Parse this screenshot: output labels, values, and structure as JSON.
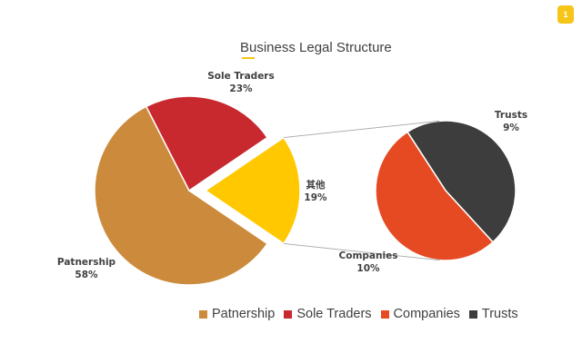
{
  "badge": "1",
  "chart_data": {
    "type": "pie",
    "subtype": "bar-of-pie",
    "title": "Business Legal Structure",
    "main_pie": [
      {
        "label": "Patnership",
        "value": 58,
        "display": "58%",
        "color": "#cc8b3c"
      },
      {
        "label": "Sole Traders",
        "value": 23,
        "display": "23%",
        "color": "#c8292e"
      },
      {
        "label": "其他",
        "value": 19,
        "display": "19%",
        "color": "#ffc800"
      }
    ],
    "secondary_pie": [
      {
        "label": "Trusts",
        "value": 9,
        "display": "9%",
        "color": "#3d3d3d"
      },
      {
        "label": "Companies",
        "value": 10,
        "display": "10%",
        "color": "#e64a23"
      }
    ],
    "legend": [
      {
        "label": "Patnership",
        "color": "#cc8b3c"
      },
      {
        "label": "Sole Traders",
        "color": "#c8292e"
      },
      {
        "label": "Companies",
        "color": "#e64a23"
      },
      {
        "label": "Trusts",
        "color": "#3d3d3d"
      }
    ],
    "legend_position": "bottom"
  }
}
